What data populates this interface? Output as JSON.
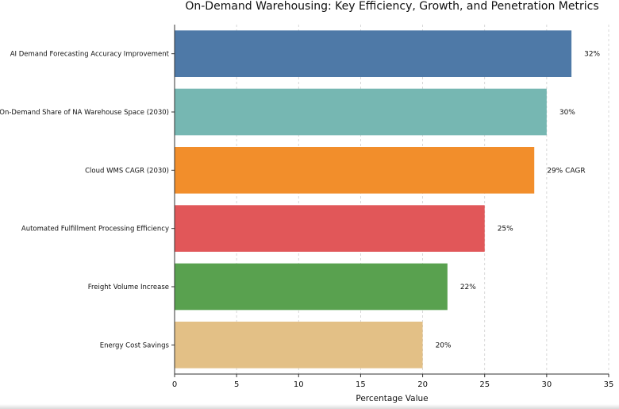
{
  "chart_data": {
    "type": "bar",
    "orientation": "horizontal",
    "title": "On-Demand Warehousing: Key Efficiency, Growth, and Penetration Metrics",
    "xlabel": "Percentage Value",
    "ylabel": "",
    "xlim": [
      0,
      35
    ],
    "xticks": [
      0,
      5,
      10,
      15,
      20,
      25,
      30,
      35
    ],
    "grid": "vertical dashed",
    "categories": [
      "AI Demand Forecasting Accuracy Improvement",
      "On-Demand Share of NA Warehouse Space (2030)",
      "Cloud WMS CAGR (2030)",
      "Automated Fulfillment Processing Efficiency",
      "Freight Volume Increase",
      "Energy Cost Savings"
    ],
    "values": [
      32,
      30,
      29,
      25,
      22,
      20
    ],
    "data_labels": [
      "32%",
      "30%",
      "29% CAGR",
      "25%",
      "22%",
      "20%"
    ],
    "colors": [
      "#4e79a7",
      "#76b7b2",
      "#f28e2b",
      "#e15759",
      "#59a14f",
      "#e3c086"
    ]
  }
}
